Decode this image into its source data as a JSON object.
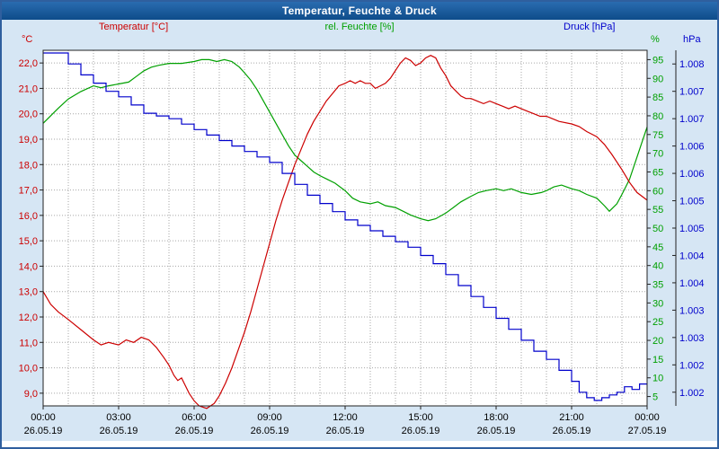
{
  "window": {
    "title": "Temperatur, Feuchte & Druck"
  },
  "chart_data": {
    "type": "line",
    "title": "Temperatur, Feuchte & Druck",
    "grid": "dotted",
    "legend_position": "top",
    "x_axis": {
      "hours_span": 24,
      "tick_hours": [
        0,
        3,
        6,
        9,
        12,
        15,
        18,
        21,
        24
      ],
      "time_labels": [
        "00:00",
        "03:00",
        "06:00",
        "09:00",
        "12:00",
        "15:00",
        "18:00",
        "21:00",
        "00:00"
      ],
      "date_labels": [
        "26.05.19",
        "26.05.19",
        "26.05.19",
        "26.05.19",
        "26.05.19",
        "26.05.19",
        "26.05.19",
        "26.05.19",
        "27.05.19"
      ]
    },
    "y_axes": [
      {
        "id": "temperature",
        "side": "left",
        "unit": "°C",
        "color": "#cc0000",
        "min": 8.5,
        "max": 22.5,
        "tick_values": [
          22,
          21,
          20,
          19,
          18,
          17,
          16,
          15,
          14,
          13,
          12,
          11,
          10,
          9
        ],
        "tick_labels": [
          "22,0",
          "21,0",
          "20,0",
          "19,0",
          "18,0",
          "17,0",
          "16,0",
          "15,0",
          "14,0",
          "13,0",
          "12,0",
          "11,0",
          "10,0",
          "9,0"
        ]
      },
      {
        "id": "humidity",
        "side": "right",
        "unit": "%",
        "color": "#00a000",
        "min": 2.5,
        "max": 97.5,
        "tick_values": [
          95,
          90,
          85,
          80,
          75,
          70,
          65,
          60,
          55,
          50,
          45,
          40,
          35,
          30,
          25,
          20,
          15,
          10,
          5
        ],
        "tick_labels": [
          "95",
          "90",
          "85",
          "80",
          "75",
          "70",
          "65",
          "60",
          "55",
          "50",
          "45",
          "40",
          "35",
          "30",
          "25",
          "20",
          "15",
          "10",
          "5"
        ]
      },
      {
        "id": "pressure",
        "side": "far_right",
        "unit": "hPa",
        "color": "#0000cc",
        "min": 1.00175,
        "max": 1.00825,
        "tick_values": [
          1.008,
          1.0075,
          1.007,
          1.0065,
          1.006,
          1.0055,
          1.005,
          1.0045,
          1.004,
          1.0035,
          1.003,
          1.0025,
          1.002
        ],
        "tick_labels": [
          "1.008",
          "1.007",
          "1.007",
          "1.006",
          "1.006",
          "1.005",
          "1.005",
          "1.004",
          "1.004",
          "1.003",
          "1.003",
          "1.002",
          "1.002"
        ]
      }
    ],
    "series": [
      {
        "name_id": "humidity",
        "label": "rel. Feuchte [%]",
        "axis": "humidity",
        "color": "#00a000",
        "step": false,
        "points": [
          [
            0,
            78
          ],
          [
            0.3,
            80
          ],
          [
            0.6,
            82
          ],
          [
            1,
            84.5
          ],
          [
            1.5,
            86.5
          ],
          [
            2,
            88
          ],
          [
            2.3,
            87.5
          ],
          [
            2.6,
            88
          ],
          [
            3,
            88.5
          ],
          [
            3.4,
            89
          ],
          [
            3.7,
            90.5
          ],
          [
            4,
            92
          ],
          [
            4.3,
            93
          ],
          [
            4.6,
            93.5
          ],
          [
            5,
            94
          ],
          [
            5.5,
            94
          ],
          [
            6,
            94.5
          ],
          [
            6.3,
            95
          ],
          [
            6.6,
            95
          ],
          [
            6.9,
            94.5
          ],
          [
            7.2,
            95
          ],
          [
            7.5,
            94.5
          ],
          [
            7.8,
            93
          ],
          [
            8,
            91.5
          ],
          [
            8.25,
            89.5
          ],
          [
            8.5,
            87
          ],
          [
            8.75,
            84
          ],
          [
            9,
            81
          ],
          [
            9.25,
            78
          ],
          [
            9.5,
            75
          ],
          [
            9.75,
            72
          ],
          [
            10,
            69.5
          ],
          [
            10.25,
            68
          ],
          [
            10.5,
            66.5
          ],
          [
            10.75,
            65
          ],
          [
            11,
            64
          ],
          [
            11.3,
            63
          ],
          [
            11.6,
            62
          ],
          [
            12,
            60
          ],
          [
            12.3,
            58
          ],
          [
            12.6,
            57
          ],
          [
            13,
            56.5
          ],
          [
            13.3,
            57
          ],
          [
            13.6,
            56
          ],
          [
            14,
            55.5
          ],
          [
            14.3,
            54.5
          ],
          [
            14.6,
            53.5
          ],
          [
            15,
            52.5
          ],
          [
            15.3,
            52
          ],
          [
            15.6,
            52.5
          ],
          [
            16,
            54
          ],
          [
            16.3,
            55.5
          ],
          [
            16.6,
            57
          ],
          [
            17,
            58.5
          ],
          [
            17.3,
            59.5
          ],
          [
            17.6,
            60
          ],
          [
            18,
            60.5
          ],
          [
            18.3,
            60
          ],
          [
            18.6,
            60.5
          ],
          [
            19,
            59.5
          ],
          [
            19.4,
            59
          ],
          [
            19.8,
            59.5
          ],
          [
            20,
            60
          ],
          [
            20.3,
            61
          ],
          [
            20.6,
            61.5
          ],
          [
            21,
            60.5
          ],
          [
            21.3,
            60
          ],
          [
            21.6,
            59
          ],
          [
            22,
            58
          ],
          [
            22.3,
            56
          ],
          [
            22.5,
            54.5
          ],
          [
            22.8,
            56.5
          ],
          [
            23,
            59
          ],
          [
            23.3,
            63
          ],
          [
            23.6,
            69
          ],
          [
            23.8,
            73
          ],
          [
            24,
            77
          ]
        ]
      },
      {
        "name_id": "temperature",
        "label": "Temperatur [°C]",
        "axis": "temperature",
        "color": "#cc0000",
        "step": false,
        "points": [
          [
            0,
            13.0
          ],
          [
            0.3,
            12.5
          ],
          [
            0.6,
            12.2
          ],
          [
            1,
            11.9
          ],
          [
            1.5,
            11.5
          ],
          [
            2,
            11.1
          ],
          [
            2.3,
            10.9
          ],
          [
            2.6,
            11.0
          ],
          [
            3,
            10.9
          ],
          [
            3.3,
            11.1
          ],
          [
            3.6,
            11.0
          ],
          [
            3.9,
            11.2
          ],
          [
            4.2,
            11.1
          ],
          [
            4.5,
            10.8
          ],
          [
            4.8,
            10.4
          ],
          [
            5,
            10.1
          ],
          [
            5.2,
            9.7
          ],
          [
            5.35,
            9.5
          ],
          [
            5.5,
            9.6
          ],
          [
            5.65,
            9.3
          ],
          [
            5.8,
            9.0
          ],
          [
            6,
            8.7
          ],
          [
            6.2,
            8.5
          ],
          [
            6.5,
            8.4
          ],
          [
            6.8,
            8.6
          ],
          [
            7,
            8.9
          ],
          [
            7.25,
            9.4
          ],
          [
            7.5,
            10.0
          ],
          [
            7.75,
            10.7
          ],
          [
            8,
            11.4
          ],
          [
            8.25,
            12.2
          ],
          [
            8.5,
            13.1
          ],
          [
            8.75,
            14.0
          ],
          [
            9,
            14.9
          ],
          [
            9.25,
            15.8
          ],
          [
            9.5,
            16.6
          ],
          [
            9.75,
            17.3
          ],
          [
            10,
            18.0
          ],
          [
            10.25,
            18.6
          ],
          [
            10.5,
            19.2
          ],
          [
            10.75,
            19.7
          ],
          [
            11,
            20.1
          ],
          [
            11.25,
            20.5
          ],
          [
            11.5,
            20.8
          ],
          [
            11.75,
            21.1
          ],
          [
            12,
            21.2
          ],
          [
            12.2,
            21.3
          ],
          [
            12.4,
            21.2
          ],
          [
            12.6,
            21.3
          ],
          [
            12.8,
            21.2
          ],
          [
            13,
            21.2
          ],
          [
            13.2,
            21.0
          ],
          [
            13.4,
            21.1
          ],
          [
            13.6,
            21.2
          ],
          [
            13.8,
            21.4
          ],
          [
            14,
            21.7
          ],
          [
            14.2,
            22.0
          ],
          [
            14.4,
            22.2
          ],
          [
            14.6,
            22.1
          ],
          [
            14.8,
            21.9
          ],
          [
            15,
            22.0
          ],
          [
            15.2,
            22.2
          ],
          [
            15.4,
            22.3
          ],
          [
            15.6,
            22.2
          ],
          [
            15.8,
            21.8
          ],
          [
            16,
            21.5
          ],
          [
            16.2,
            21.1
          ],
          [
            16.4,
            20.9
          ],
          [
            16.6,
            20.7
          ],
          [
            16.8,
            20.6
          ],
          [
            17,
            20.6
          ],
          [
            17.25,
            20.5
          ],
          [
            17.5,
            20.4
          ],
          [
            17.75,
            20.5
          ],
          [
            18,
            20.4
          ],
          [
            18.25,
            20.3
          ],
          [
            18.5,
            20.2
          ],
          [
            18.75,
            20.3
          ],
          [
            19,
            20.2
          ],
          [
            19.25,
            20.1
          ],
          [
            19.5,
            20.0
          ],
          [
            19.75,
            19.9
          ],
          [
            20,
            19.9
          ],
          [
            20.5,
            19.7
          ],
          [
            21,
            19.6
          ],
          [
            21.3,
            19.5
          ],
          [
            21.6,
            19.3
          ],
          [
            22,
            19.1
          ],
          [
            22.3,
            18.8
          ],
          [
            22.6,
            18.4
          ],
          [
            23,
            17.8
          ],
          [
            23.3,
            17.3
          ],
          [
            23.6,
            16.9
          ],
          [
            24,
            16.6
          ]
        ]
      },
      {
        "name_id": "pressure",
        "label": "Druck [hPa]",
        "axis": "pressure",
        "color": "#0000cc",
        "step": true,
        "points": [
          [
            0,
            1.0082
          ],
          [
            0.5,
            1.0082
          ],
          [
            1,
            1.008
          ],
          [
            1.5,
            1.0078
          ],
          [
            2,
            1.00765
          ],
          [
            2.5,
            1.0075
          ],
          [
            3,
            1.0074
          ],
          [
            3.5,
            1.00725
          ],
          [
            4,
            1.0071
          ],
          [
            4.5,
            1.00705
          ],
          [
            5,
            1.007
          ],
          [
            5.5,
            1.0069
          ],
          [
            6,
            1.0068
          ],
          [
            6.5,
            1.0067
          ],
          [
            7,
            1.0066
          ],
          [
            7.5,
            1.0065
          ],
          [
            8,
            1.0064
          ],
          [
            8.5,
            1.0063
          ],
          [
            9,
            1.0062
          ],
          [
            9.5,
            1.006
          ],
          [
            10,
            1.0058
          ],
          [
            10.5,
            1.0056
          ],
          [
            11,
            1.00545
          ],
          [
            11.5,
            1.0053
          ],
          [
            12,
            1.00515
          ],
          [
            12.5,
            1.00505
          ],
          [
            13,
            1.00495
          ],
          [
            13.5,
            1.00485
          ],
          [
            14,
            1.00475
          ],
          [
            14.5,
            1.00465
          ],
          [
            15,
            1.0045
          ],
          [
            15.5,
            1.00435
          ],
          [
            16,
            1.00415
          ],
          [
            16.5,
            1.00395
          ],
          [
            17,
            1.00375
          ],
          [
            17.5,
            1.00355
          ],
          [
            18,
            1.00335
          ],
          [
            18.5,
            1.00315
          ],
          [
            19,
            1.00295
          ],
          [
            19.5,
            1.00275
          ],
          [
            20,
            1.0026
          ],
          [
            20.5,
            1.0024
          ],
          [
            21,
            1.0022
          ],
          [
            21.3,
            1.002
          ],
          [
            21.6,
            1.0019
          ],
          [
            21.9,
            1.00185
          ],
          [
            22.2,
            1.0019
          ],
          [
            22.5,
            1.00195
          ],
          [
            22.8,
            1.002
          ],
          [
            23.1,
            1.0021
          ],
          [
            23.4,
            1.00205
          ],
          [
            23.7,
            1.00215
          ],
          [
            24,
            1.00215
          ]
        ]
      }
    ]
  }
}
